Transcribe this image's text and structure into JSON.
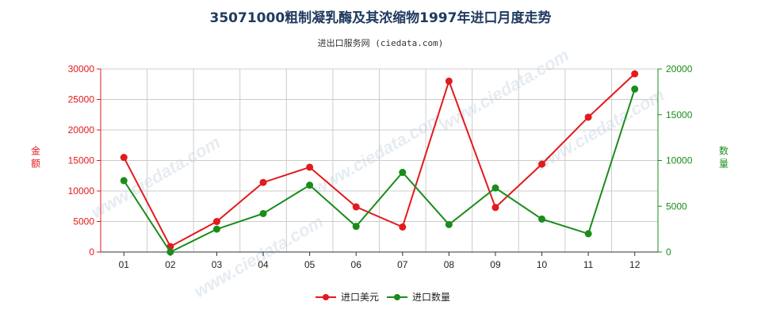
{
  "title": "35071000粗制凝乳酶及其浓缩物1997年进口月度走势",
  "subtitle": "进出口服务网 (ciedata.com)",
  "watermark": "www.ciedata.com",
  "colors": {
    "left": "#e31a1c",
    "right": "#1a8c1a",
    "grid": "#cccccc"
  },
  "chart_data": {
    "type": "line",
    "categories": [
      "01",
      "02",
      "03",
      "04",
      "05",
      "06",
      "07",
      "08",
      "09",
      "10",
      "11",
      "12"
    ],
    "y_left": {
      "label": "金额",
      "ylim": [
        0,
        30000
      ],
      "ticks": [
        0,
        5000,
        10000,
        15000,
        20000,
        25000,
        30000
      ]
    },
    "y_right": {
      "label": "数量",
      "ylim": [
        0,
        20000
      ],
      "ticks": [
        0,
        5000,
        10000,
        15000,
        20000
      ]
    },
    "series": [
      {
        "name": "进口美元",
        "axis": "left",
        "color": "#e31a1c",
        "values": [
          15500,
          900,
          5000,
          11400,
          13900,
          7400,
          4100,
          28000,
          7300,
          14400,
          22100,
          29200
        ]
      },
      {
        "name": "进口数量",
        "axis": "right",
        "color": "#1a8c1a",
        "values": [
          7800,
          0,
          2500,
          4200,
          7300,
          2800,
          8700,
          3000,
          7000,
          3600,
          2000,
          17800
        ]
      }
    ],
    "grid": true,
    "legend_position": "bottom-center"
  }
}
